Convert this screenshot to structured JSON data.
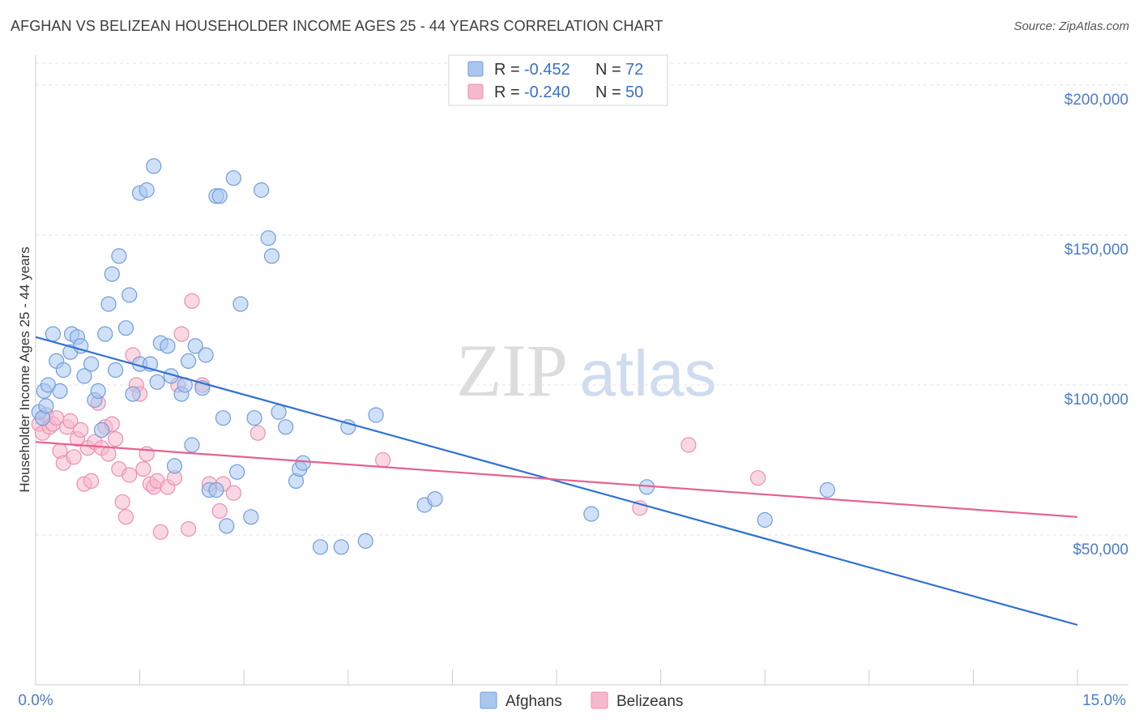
{
  "title": "AFGHAN VS BELIZEAN HOUSEHOLDER INCOME AGES 25 - 44 YEARS CORRELATION CHART",
  "source": "Source: ZipAtlas.com",
  "watermark": {
    "zip": "ZIP",
    "atlas": "atlas"
  },
  "colors": {
    "blue_fill": "#a9c6ef",
    "blue_stroke": "#6f9de0",
    "blue_line": "#2f72d0",
    "pink_fill": "#f6b8cc",
    "pink_stroke": "#eb8fae",
    "pink_line": "#e4628f",
    "tick_text": "#4a7cc9",
    "grid": "#e3e3e3"
  },
  "legend": {
    "rows": [
      {
        "r_label": "R =",
        "r_value": "-0.452",
        "n_label": "N =",
        "n_value": "72"
      },
      {
        "r_label": "R =",
        "r_value": "-0.240",
        "n_label": "N =",
        "n_value": "50"
      }
    ]
  },
  "chart_data": {
    "type": "scatter",
    "xlabel": "",
    "ylabel": "Householder Income Ages 25 - 44 years",
    "xlim": [
      0,
      15
    ],
    "ylim": [
      0,
      210000
    ],
    "x_tick_labels": {
      "min": "0.0%",
      "max": "15.0%"
    },
    "y_ticks": [
      {
        "value": 50000,
        "label": "$50,000"
      },
      {
        "value": 100000,
        "label": "$100,000"
      },
      {
        "value": 150000,
        "label": "$150,000"
      },
      {
        "value": 200000,
        "label": "$200,000"
      }
    ],
    "grid": true,
    "legend_position": "bottom",
    "series": [
      {
        "name": "Afghans",
        "color": "#6f9de0",
        "trend": {
          "x": [
            0,
            15
          ],
          "y": [
            116000,
            20000
          ]
        },
        "points": [
          [
            0.05,
            91000
          ],
          [
            0.1,
            89000
          ],
          [
            0.12,
            98000
          ],
          [
            0.15,
            93000
          ],
          [
            0.18,
            100000
          ],
          [
            0.25,
            117000
          ],
          [
            0.3,
            108000
          ],
          [
            0.35,
            98000
          ],
          [
            0.4,
            105000
          ],
          [
            0.5,
            111000
          ],
          [
            0.52,
            117000
          ],
          [
            0.6,
            116000
          ],
          [
            0.65,
            113000
          ],
          [
            0.7,
            103000
          ],
          [
            0.8,
            107000
          ],
          [
            0.85,
            95000
          ],
          [
            0.9,
            98000
          ],
          [
            0.95,
            85000
          ],
          [
            1.0,
            117000
          ],
          [
            1.05,
            127000
          ],
          [
            1.1,
            137000
          ],
          [
            1.15,
            105000
          ],
          [
            1.2,
            143000
          ],
          [
            1.3,
            119000
          ],
          [
            1.35,
            130000
          ],
          [
            1.4,
            97000
          ],
          [
            1.5,
            107000
          ],
          [
            1.5,
            164000
          ],
          [
            1.6,
            165000
          ],
          [
            1.65,
            107000
          ],
          [
            1.7,
            173000
          ],
          [
            1.75,
            101000
          ],
          [
            1.8,
            114000
          ],
          [
            1.9,
            113000
          ],
          [
            1.95,
            103000
          ],
          [
            2.0,
            73000
          ],
          [
            2.1,
            97000
          ],
          [
            2.15,
            100000
          ],
          [
            2.2,
            108000
          ],
          [
            2.25,
            80000
          ],
          [
            2.3,
            113000
          ],
          [
            2.4,
            99000
          ],
          [
            2.45,
            110000
          ],
          [
            2.5,
            65000
          ],
          [
            2.6,
            65000
          ],
          [
            2.6,
            163000
          ],
          [
            2.65,
            163000
          ],
          [
            2.7,
            89000
          ],
          [
            2.75,
            53000
          ],
          [
            2.85,
            169000
          ],
          [
            2.9,
            71000
          ],
          [
            2.95,
            127000
          ],
          [
            3.1,
            56000
          ],
          [
            3.15,
            89000
          ],
          [
            3.25,
            165000
          ],
          [
            3.35,
            149000
          ],
          [
            3.4,
            143000
          ],
          [
            3.5,
            91000
          ],
          [
            3.6,
            86000
          ],
          [
            3.75,
            68000
          ],
          [
            3.8,
            72000
          ],
          [
            3.85,
            74000
          ],
          [
            4.1,
            46000
          ],
          [
            4.4,
            46000
          ],
          [
            4.5,
            86000
          ],
          [
            4.9,
            90000
          ],
          [
            4.75,
            48000
          ],
          [
            5.6,
            60000
          ],
          [
            5.75,
            62000
          ],
          [
            8.0,
            57000
          ],
          [
            8.8,
            66000
          ],
          [
            10.5,
            55000
          ],
          [
            11.4,
            65000
          ]
        ]
      },
      {
        "name": "Belizeans",
        "color": "#eb8fae",
        "trend": {
          "x": [
            0,
            15
          ],
          "y": [
            81000,
            56000
          ]
        },
        "points": [
          [
            0.05,
            87000
          ],
          [
            0.1,
            84000
          ],
          [
            0.15,
            90000
          ],
          [
            0.2,
            86000
          ],
          [
            0.25,
            87000
          ],
          [
            0.3,
            89000
          ],
          [
            0.35,
            78000
          ],
          [
            0.4,
            74000
          ],
          [
            0.45,
            86000
          ],
          [
            0.5,
            88000
          ],
          [
            0.55,
            76000
          ],
          [
            0.6,
            82000
          ],
          [
            0.65,
            85000
          ],
          [
            0.7,
            67000
          ],
          [
            0.75,
            79000
          ],
          [
            0.8,
            68000
          ],
          [
            0.85,
            81000
          ],
          [
            0.9,
            94000
          ],
          [
            0.95,
            79000
          ],
          [
            1.0,
            86000
          ],
          [
            1.05,
            77000
          ],
          [
            1.1,
            87000
          ],
          [
            1.15,
            82000
          ],
          [
            1.2,
            72000
          ],
          [
            1.25,
            61000
          ],
          [
            1.3,
            56000
          ],
          [
            1.35,
            70000
          ],
          [
            1.4,
            110000
          ],
          [
            1.45,
            100000
          ],
          [
            1.5,
            97000
          ],
          [
            1.55,
            72000
          ],
          [
            1.6,
            77000
          ],
          [
            1.65,
            67000
          ],
          [
            1.7,
            66000
          ],
          [
            1.75,
            68000
          ],
          [
            1.8,
            51000
          ],
          [
            1.9,
            66000
          ],
          [
            2.0,
            69000
          ],
          [
            2.05,
            100000
          ],
          [
            2.1,
            117000
          ],
          [
            2.2,
            52000
          ],
          [
            2.25,
            128000
          ],
          [
            2.4,
            100000
          ],
          [
            2.5,
            67000
          ],
          [
            2.65,
            58000
          ],
          [
            2.7,
            67000
          ],
          [
            2.85,
            64000
          ],
          [
            3.2,
            84000
          ],
          [
            5.0,
            75000
          ],
          [
            8.7,
            59000
          ],
          [
            9.4,
            80000
          ],
          [
            10.4,
            69000
          ]
        ]
      }
    ]
  }
}
